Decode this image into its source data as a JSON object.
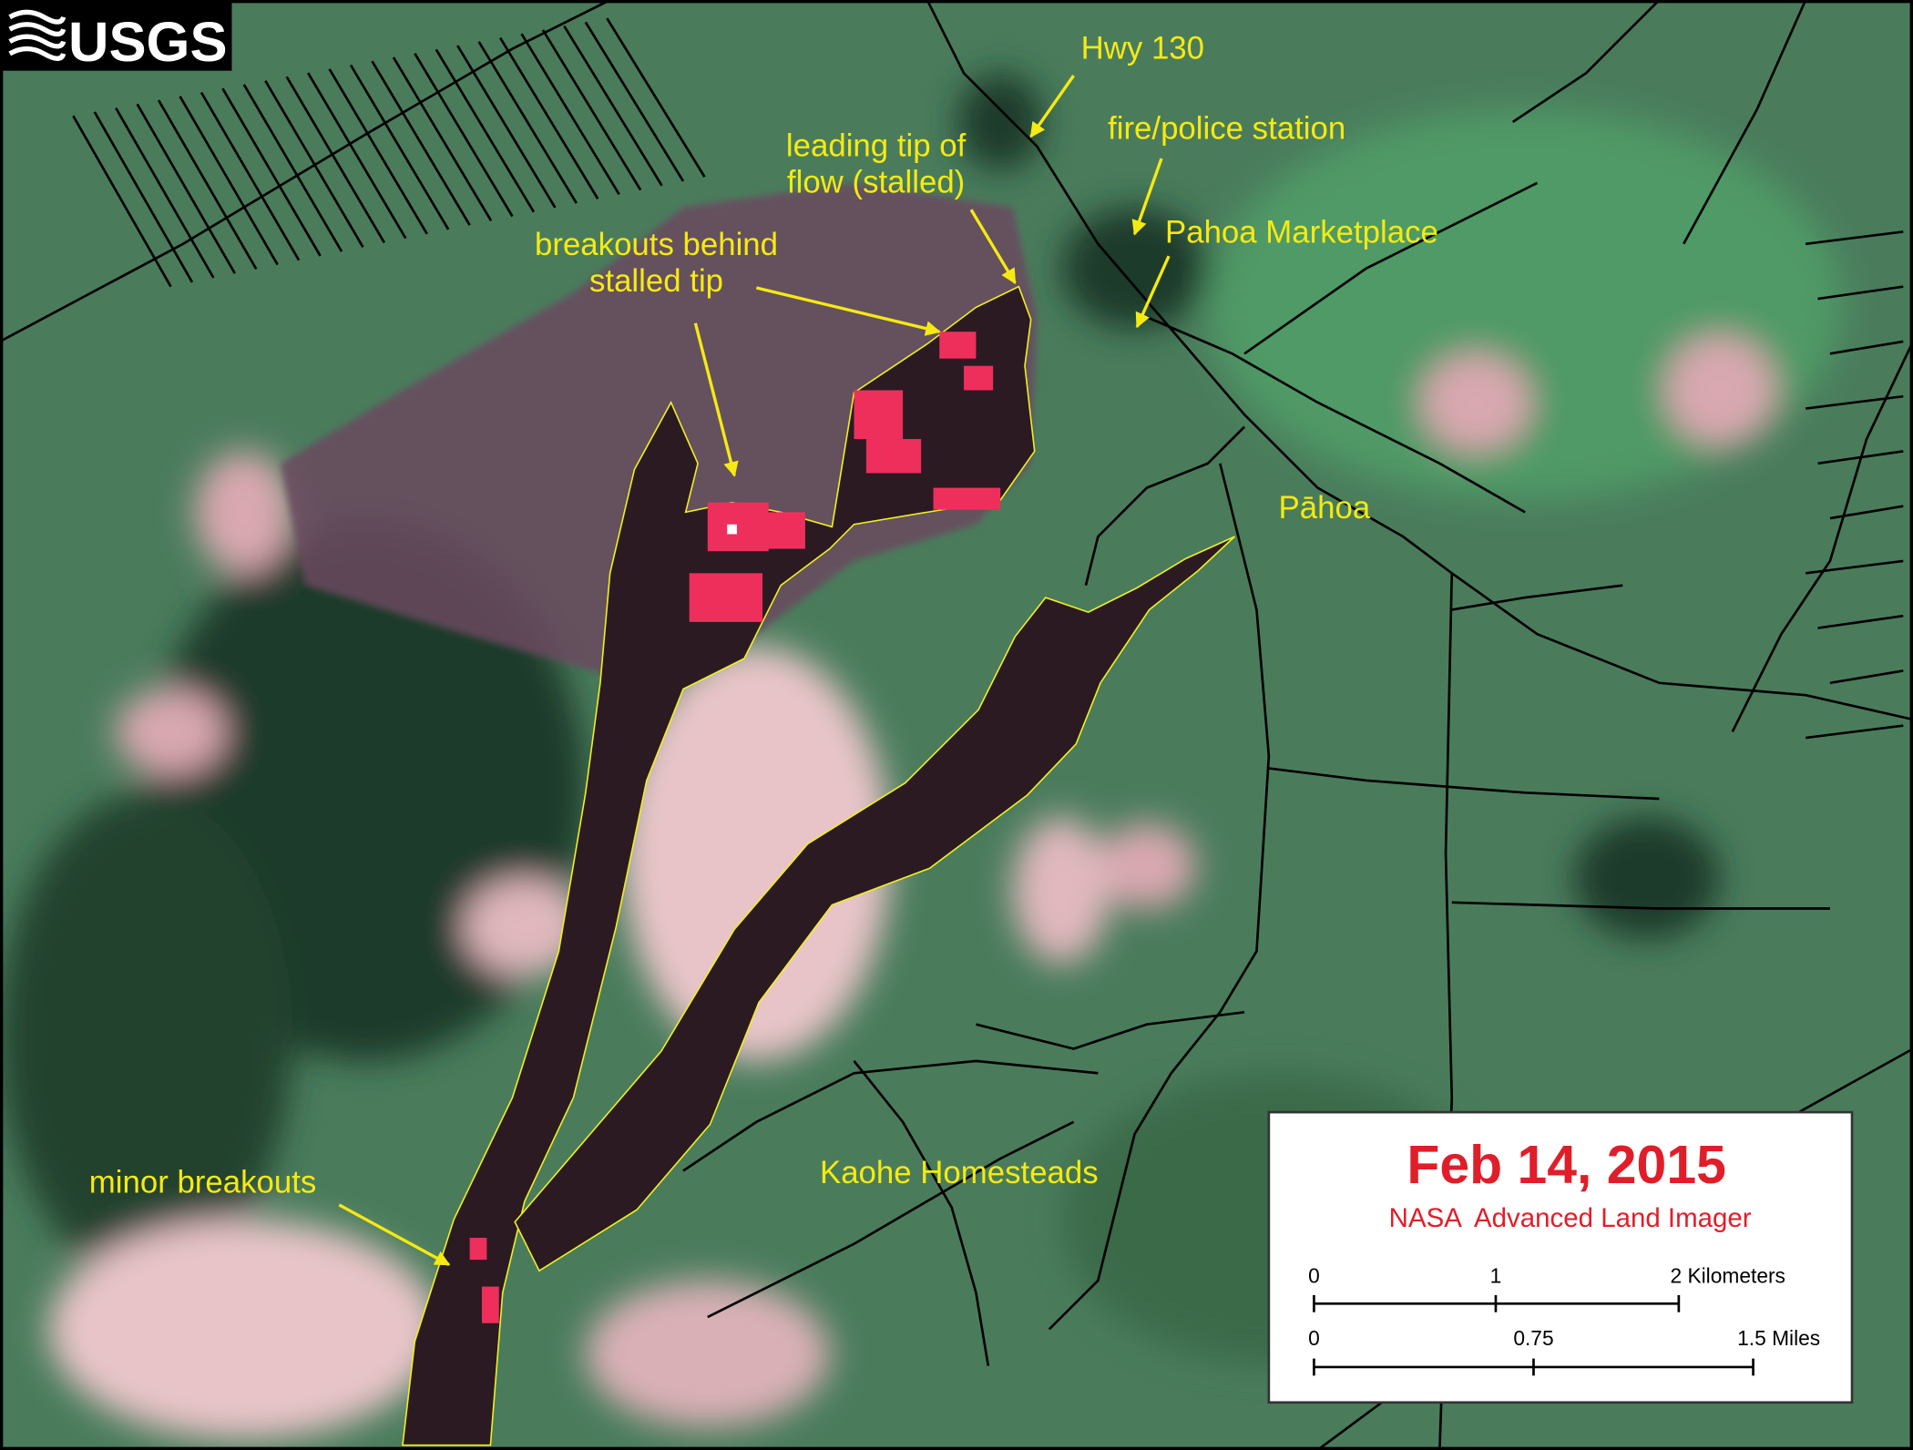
{
  "logo": {
    "text": "USGS"
  },
  "labels": [
    {
      "lines": [
        "Hwy 130"
      ]
    },
    {
      "lines": [
        "fire/police station"
      ]
    },
    {
      "lines": [
        "Pahoa Marketplace"
      ]
    },
    {
      "lines": [
        "leading tip of",
        "flow (stalled)"
      ]
    },
    {
      "lines": [
        "breakouts behind",
        "stalled tip"
      ]
    },
    {
      "lines": [
        "Pāhoa"
      ]
    },
    {
      "lines": [
        "Kaohe Homesteads"
      ]
    },
    {
      "lines": [
        "minor breakouts"
      ]
    }
  ],
  "info_box": {
    "date": "Feb 14, 2015",
    "source": "NASA  Advanced Land Imager",
    "km_scale": [
      "0",
      "1",
      "2 Kilometers"
    ],
    "mile_scale": [
      "0",
      "0.75",
      "1.5 Miles"
    ]
  }
}
